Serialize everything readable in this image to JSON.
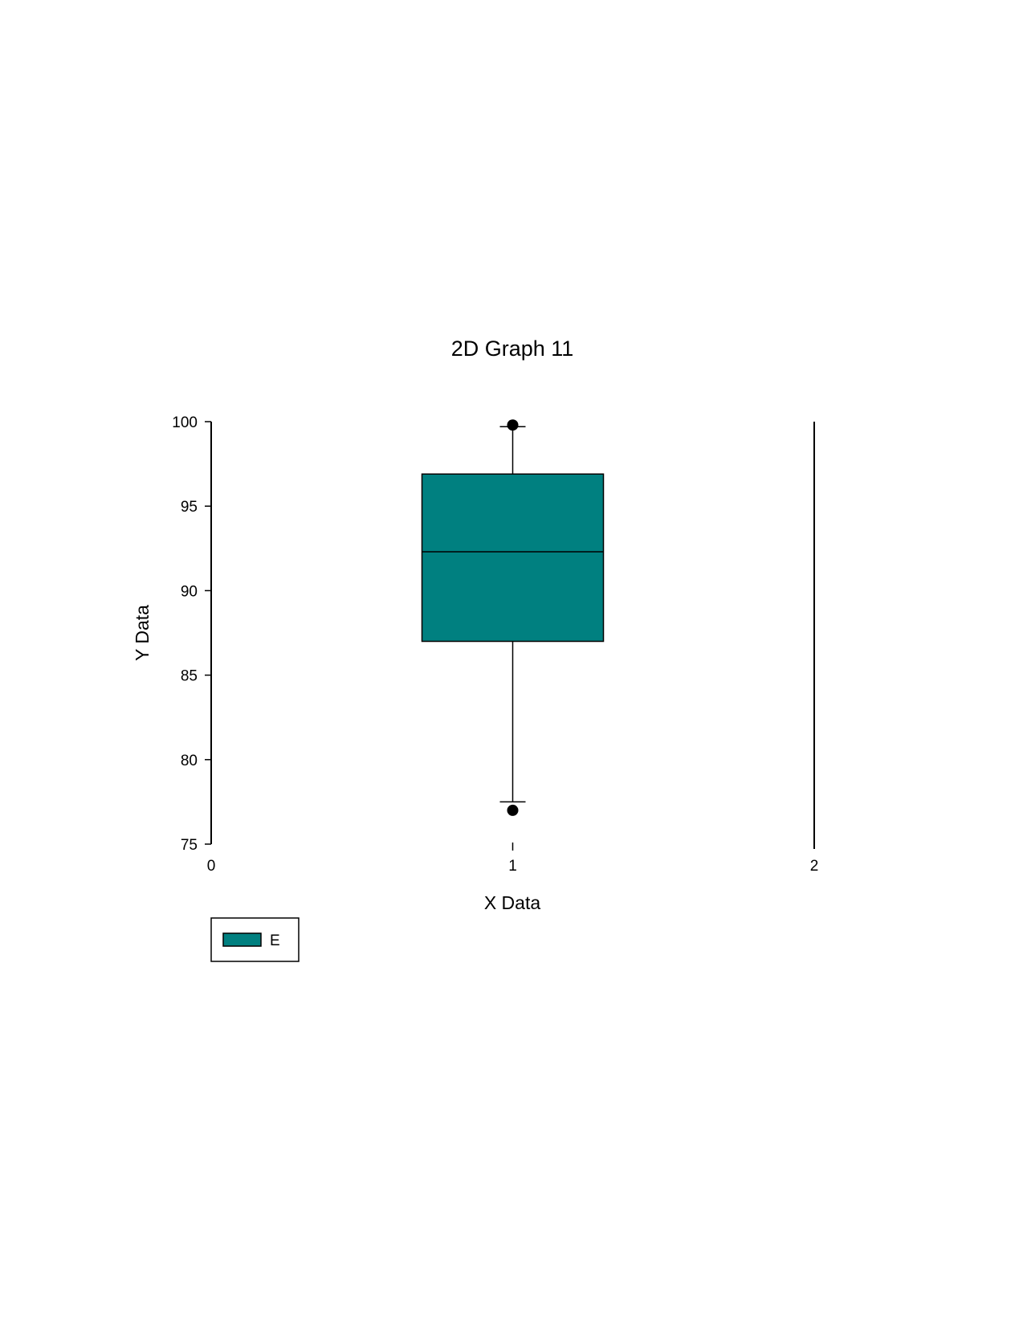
{
  "chart_data": {
    "type": "box",
    "title": "2D Graph 11",
    "xlabel": "X Data",
    "ylabel": "Y Data",
    "xlim": [
      0,
      2
    ],
    "ylim": [
      75,
      100
    ],
    "x_ticks": [
      0,
      1,
      2
    ],
    "y_ticks": [
      75,
      80,
      85,
      90,
      95,
      100
    ],
    "grid": false,
    "legend_placement": "bottom-left",
    "series": [
      {
        "name": "E",
        "x": 1,
        "whisker_low": 77.5,
        "q1": 87,
        "median": 92.3,
        "q3": 96.9,
        "whisker_high": 99.7,
        "outliers": [
          77.0,
          99.8
        ],
        "color": "#008080"
      }
    ]
  }
}
